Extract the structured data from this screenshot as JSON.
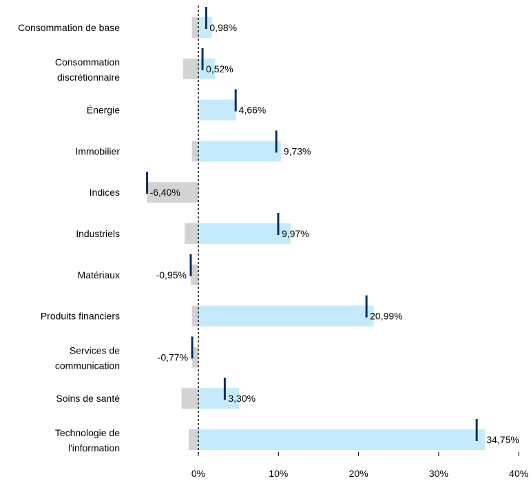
{
  "chart_data": {
    "type": "bar",
    "orientation": "horizontal",
    "categories": [
      [
        "Consommation de base"
      ],
      [
        "Consommation",
        "discrétionnaire"
      ],
      [
        "Énergie"
      ],
      [
        "Immobilier"
      ],
      [
        "Indices"
      ],
      [
        "Industriels"
      ],
      [
        "Matériaux"
      ],
      [
        "Produits financiers"
      ],
      [
        "Services de",
        "communication"
      ],
      [
        "Soins de santé"
      ],
      [
        "Technologie de",
        "l'information"
      ]
    ],
    "series": [
      {
        "role": "positive-contribution",
        "color": "#c4ebfb",
        "values": [
          1.7,
          2.1,
          4.7,
          10.3,
          0,
          11.5,
          0,
          21.9,
          0,
          5.1,
          35.8
        ]
      },
      {
        "role": "negative-contribution",
        "color": "#d3d3d3",
        "values": [
          -0.8,
          -1.9,
          -0.1,
          -0.8,
          -6.4,
          -1.7,
          -0.95,
          -0.8,
          -0.77,
          -2.1,
          -1.2
        ]
      },
      {
        "role": "net",
        "color": "#0d2d5e",
        "values": [
          0.98,
          0.52,
          4.66,
          9.73,
          -6.4,
          9.97,
          -0.95,
          20.99,
          -0.77,
          3.3,
          34.75
        ],
        "labels": [
          "0,98%",
          "0,52%",
          "4,66%",
          "9,73%",
          "-6,40%",
          "9,97%",
          "-0,95%",
          "20,99%",
          "-0,77%",
          "3,30%",
          "34,75%"
        ]
      }
    ],
    "xlim": [
      -8,
      40
    ],
    "xticks": [
      0,
      10,
      20,
      30,
      40
    ],
    "xtick_labels": [
      "0%",
      "10%",
      "20%",
      "30%",
      "40%"
    ],
    "zero_line": "dashed",
    "grid": false,
    "legend": "none"
  }
}
